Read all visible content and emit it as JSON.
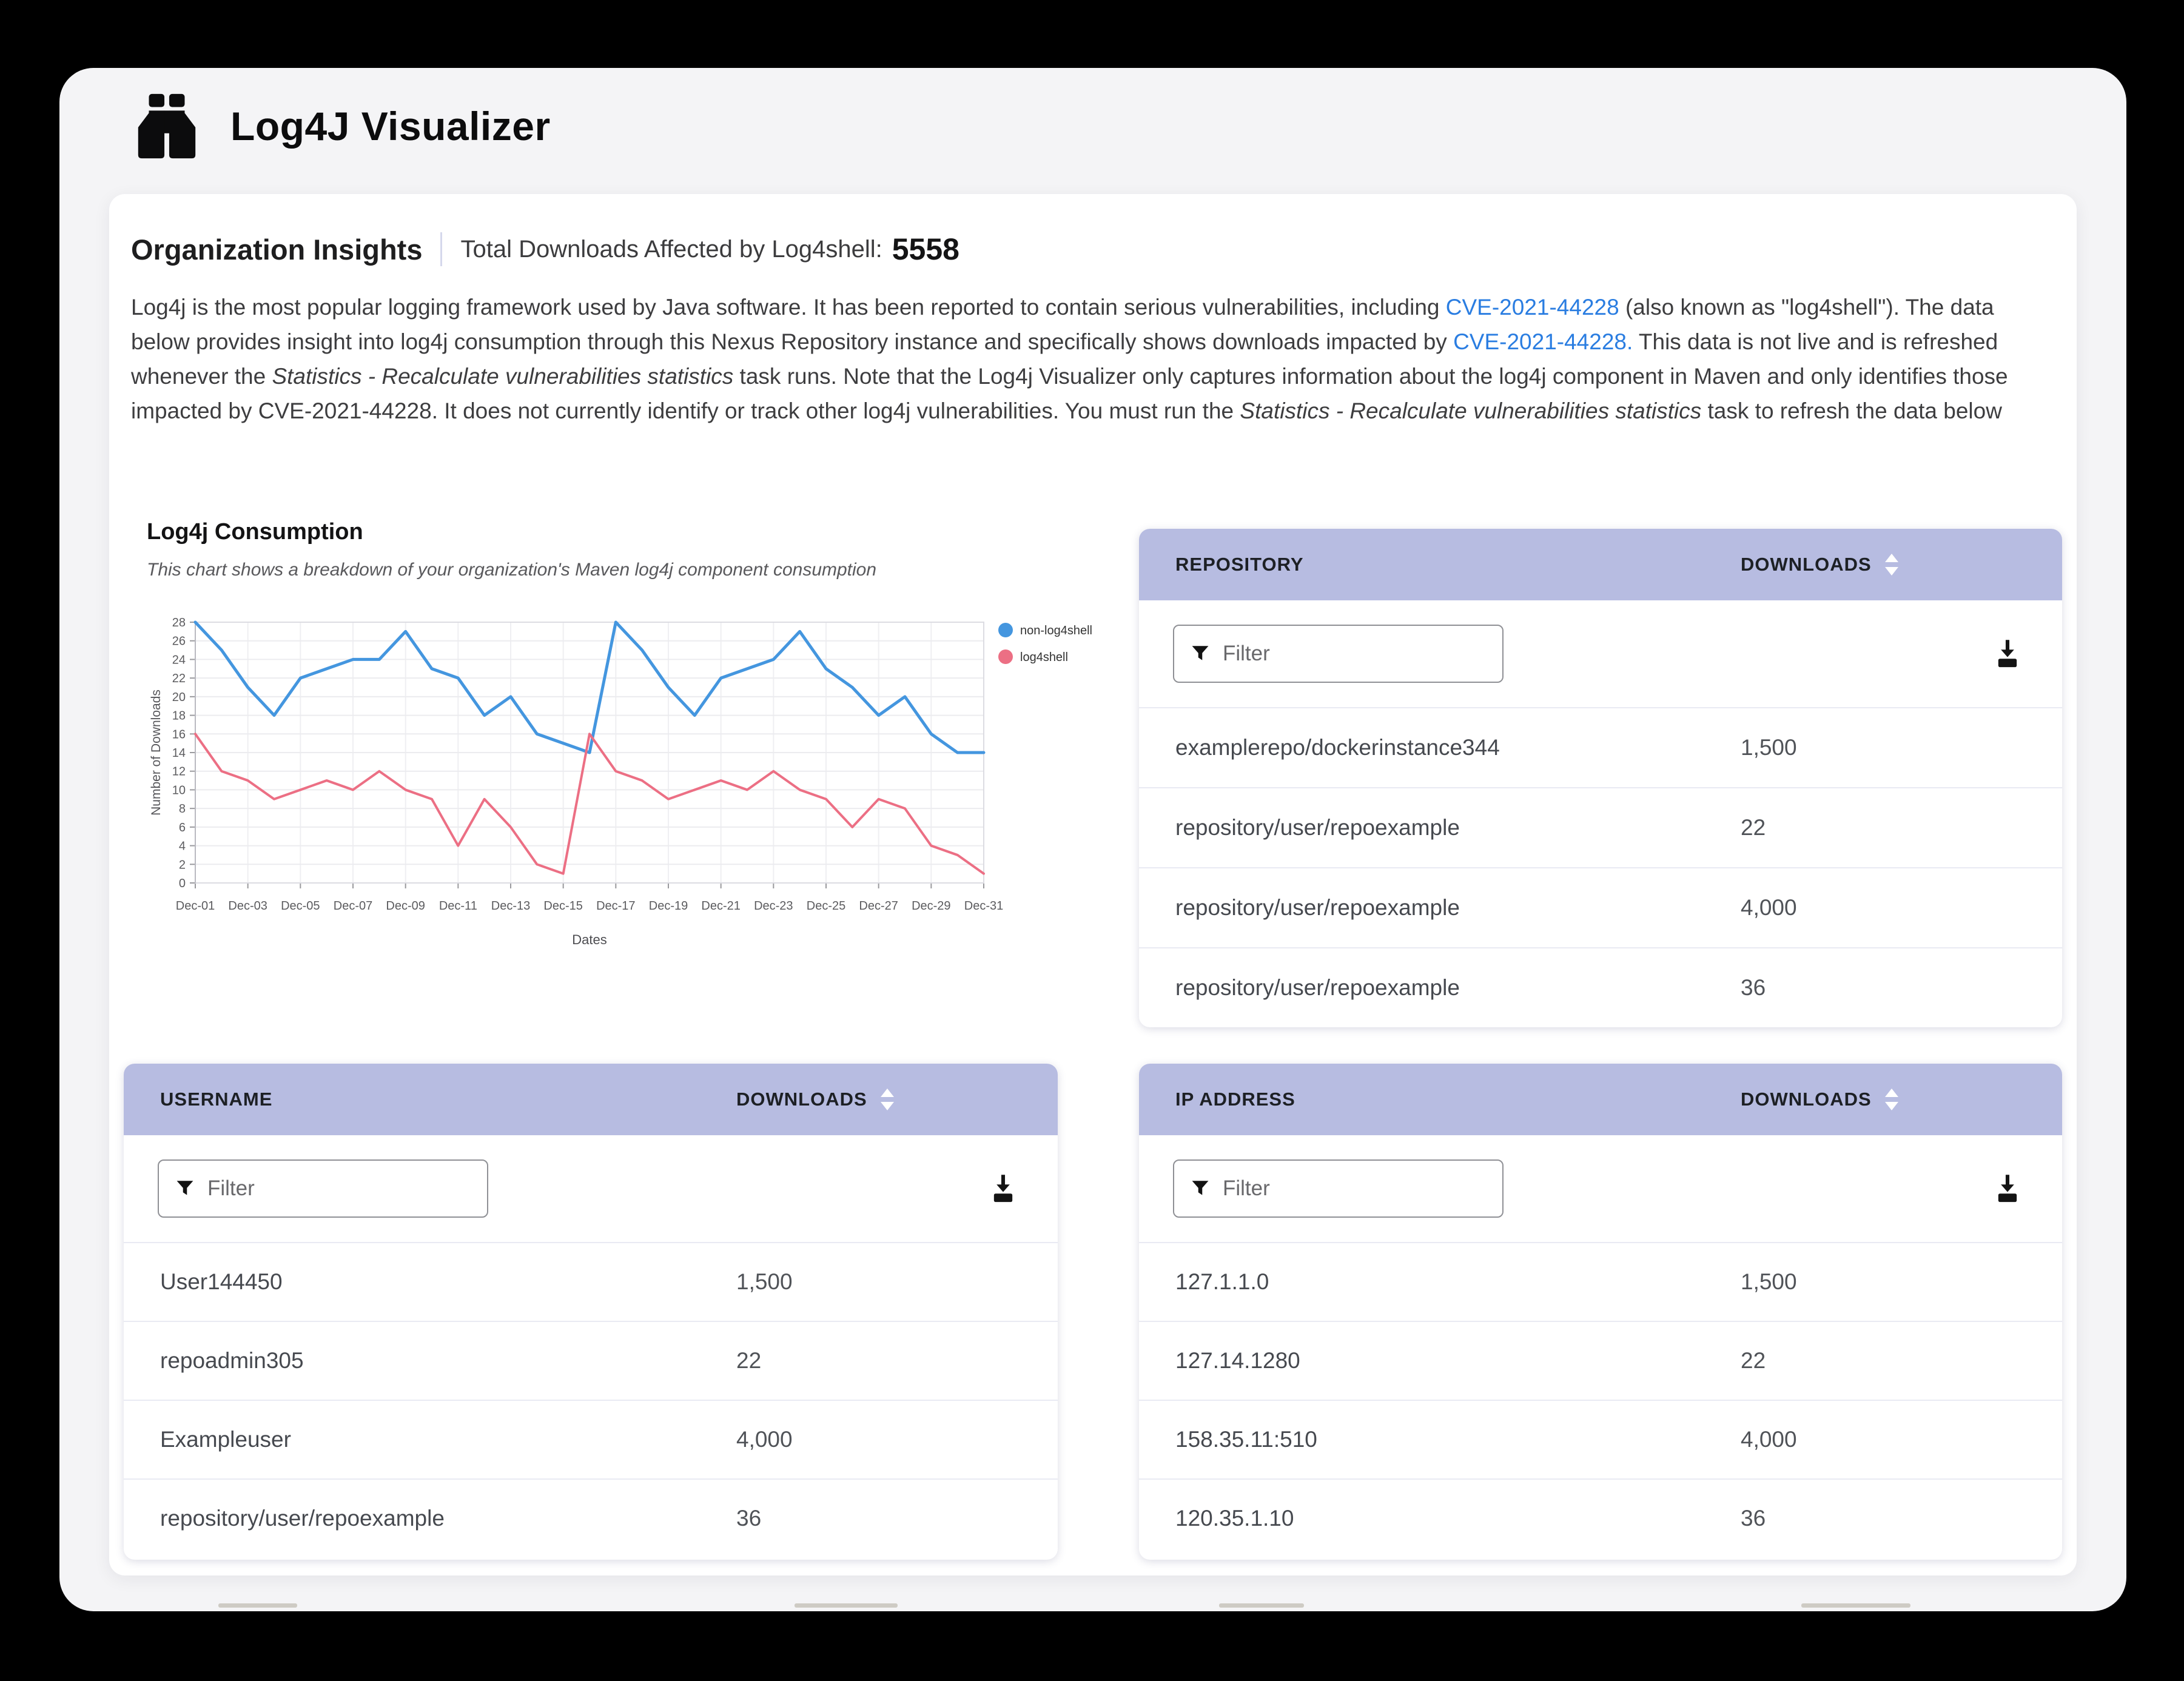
{
  "app": {
    "title": "Log4J Visualizer"
  },
  "insights": {
    "title": "Organization Insights",
    "total_label": "Total Downloads Affected by Log4shell:",
    "total_value": "5558"
  },
  "description": {
    "p1": "Log4j is the most popular logging framework used by Java software. It has been reported to contain serious vulnerabilities, including ",
    "link1": "CVE-2021-44228",
    "p2": " (also known as \"log4shell\"). The data below provides insight into log4j consumption through this Nexus Repository instance and specifically shows downloads impacted by ",
    "link2": "CVE-2021-44228.",
    "p3": " This data is not live and is refreshed whenever the ",
    "italic1": "Statistics - Recalculate vulnerabilities statistics",
    "p4": " task runs. Note that the Log4j Visualizer only captures information about the log4j component in Maven and only identifies those impacted by CVE-2021-44228. It does not currently identify or track other log4j vulnerabilities. You must run the ",
    "italic2": "Statistics - Recalculate vulnerabilities statistics",
    "p5": " task to refresh the data below"
  },
  "chart_data": {
    "type": "line",
    "title": "Log4j Consumption",
    "subtitle": "This chart shows a breakdown of your organization's Maven log4j component consumption",
    "xlabel": "Dates",
    "ylabel": "Number of Downloads",
    "ylim": [
      0,
      28
    ],
    "y_tick_step": 2,
    "grid": true,
    "legend_position": "top-right",
    "categories": [
      "Dec-01",
      "Dec-02",
      "Dec-03",
      "Dec-04",
      "Dec-05",
      "Dec-06",
      "Dec-07",
      "Dec-08",
      "Dec-09",
      "Dec-10",
      "Dec-11",
      "Dec-12",
      "Dec-13",
      "Dec-14",
      "Dec-15",
      "Dec-16",
      "Dec-17",
      "Dec-18",
      "Dec-19",
      "Dec-20",
      "Dec-21",
      "Dec-22",
      "Dec-23",
      "Dec-24",
      "Dec-25",
      "Dec-26",
      "Dec-27",
      "Dec-28",
      "Dec-29",
      "Dec-30",
      "Dec-31"
    ],
    "x_tick_every": 2,
    "series": [
      {
        "name": "non-log4shell",
        "color": "#4496df",
        "values": [
          28,
          25,
          21,
          18,
          22,
          23,
          24,
          24,
          27,
          23,
          22,
          18,
          20,
          16,
          15,
          14,
          28,
          25,
          21,
          18,
          22,
          23,
          24,
          27,
          23,
          21,
          18,
          20,
          16,
          14,
          14
        ]
      },
      {
        "name": "log4shell",
        "color": "#ec6f84",
        "values": [
          16,
          12,
          11,
          9,
          10,
          11,
          10,
          12,
          10,
          9,
          4,
          9,
          6,
          2,
          1,
          16,
          12,
          11,
          9,
          10,
          11,
          10,
          12,
          10,
          9,
          6,
          9,
          8,
          4,
          3,
          1
        ]
      }
    ]
  },
  "tables": {
    "repository": {
      "key_header": "REPOSITORY",
      "downloads_header": "DOWNLOADS",
      "filter_placeholder": "Filter",
      "rows": [
        {
          "name": "examplerepo/dockerinstance344",
          "downloads": "1,500"
        },
        {
          "name": "repository/user/repoexample",
          "downloads": "22"
        },
        {
          "name": "repository/user/repoexample",
          "downloads": "4,000"
        },
        {
          "name": "repository/user/repoexample",
          "downloads": "36"
        }
      ]
    },
    "username": {
      "key_header": "USERNAME",
      "downloads_header": "DOWNLOADS",
      "filter_placeholder": "Filter",
      "rows": [
        {
          "name": "User144450",
          "downloads": "1,500"
        },
        {
          "name": "repoadmin305",
          "downloads": "22"
        },
        {
          "name": "Exampleuser",
          "downloads": "4,000"
        },
        {
          "name": "repository/user/repoexample",
          "downloads": "36"
        }
      ]
    },
    "ip": {
      "key_header": "IP ADDRESS",
      "downloads_header": "DOWNLOADS",
      "filter_placeholder": "Filter",
      "rows": [
        {
          "name": "127.1.1.0",
          "downloads": "1,500"
        },
        {
          "name": "127.14.1280",
          "downloads": "22"
        },
        {
          "name": "158.35.11:510",
          "downloads": "4,000"
        },
        {
          "name": "120.35.1.10",
          "downloads": "36"
        }
      ]
    }
  },
  "icons": {
    "app": "binoculars-icon",
    "filter": "funnel-icon",
    "export": "download-icon",
    "sort": "sort-arrows-icon"
  },
  "colors": {
    "table_header_bg": "#b7bce1",
    "link": "#2a7de1",
    "series_blue": "#4496df",
    "series_pink": "#ec6f84",
    "window_bg": "#f4f4f6"
  }
}
